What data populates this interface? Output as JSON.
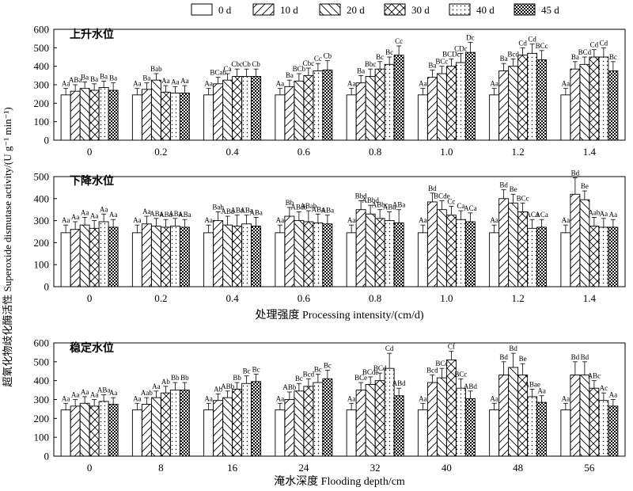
{
  "legend": [
    "0 d",
    "10 d",
    "20 d",
    "30 d",
    "40 d",
    "45 d"
  ],
  "y_axis_title": "超氧化物歧化酶活性 Superoxide dismutase activity/(U g⁻¹ min⁻¹)",
  "chart_data": [
    {
      "type": "bar",
      "title": "上升水位",
      "xlabel": "",
      "ylim": [
        0,
        600
      ],
      "yticks": [
        0,
        100,
        200,
        300,
        400,
        500,
        600
      ],
      "categories": [
        "0",
        "0.2",
        "0.4",
        "0.6",
        "0.8",
        "1.0",
        "1.2",
        "1.4"
      ],
      "series": [
        {
          "values": [
            245,
            245,
            245,
            245,
            245,
            245,
            245,
            245
          ],
          "errors": [
            35,
            35,
            35,
            35,
            35,
            35,
            35,
            35
          ],
          "labels": [
            "Aa",
            "Aa",
            "Aa",
            "Aa",
            "Aa",
            "Aa",
            "Aa",
            "Aa"
          ]
        },
        {
          "values": [
            265,
            275,
            305,
            290,
            310,
            340,
            375,
            385
          ],
          "errors": [
            35,
            35,
            35,
            35,
            40,
            40,
            40,
            40
          ],
          "labels": [
            "ABa",
            "Ba",
            "BCab",
            "Ba",
            "Ba",
            "Ba",
            "Ba",
            "Ba"
          ]
        },
        {
          "values": [
            280,
            325,
            325,
            320,
            345,
            360,
            400,
            410
          ],
          "errors": [
            35,
            35,
            35,
            40,
            40,
            40,
            40,
            40
          ],
          "labels": [
            "Ba",
            "Bab",
            "Ca",
            "BCb",
            "Bbc",
            "BCc",
            "Bcd",
            "BCd"
          ]
        },
        {
          "values": [
            270,
            260,
            345,
            350,
            385,
            400,
            460,
            450
          ],
          "errors": [
            35,
            35,
            40,
            40,
            40,
            40,
            40,
            40
          ],
          "labels": [
            "Ba",
            "Aa",
            "Cbc",
            "Cbc",
            "Bc",
            "BCDc",
            "Cd",
            "Cd"
          ]
        },
        {
          "values": [
            285,
            255,
            345,
            375,
            410,
            420,
            470,
            450
          ],
          "errors": [
            35,
            35,
            40,
            40,
            40,
            50,
            50,
            50
          ],
          "labels": [
            "Ba",
            "Aa",
            "Cb",
            "Cc",
            "Bc",
            "CDc",
            "Cd",
            "Cd"
          ]
        },
        {
          "values": [
            270,
            255,
            345,
            380,
            460,
            475,
            435,
            375
          ],
          "errors": [
            40,
            40,
            40,
            50,
            50,
            55,
            50,
            50
          ],
          "labels": [
            "Ba",
            "Aa",
            "Cb",
            "Cb",
            "Cc",
            "Dc",
            "BCc",
            "Bc"
          ]
        }
      ]
    },
    {
      "type": "bar",
      "title": "下降水位",
      "xlabel": "处理强度 Processing intensity/(cm/d)",
      "ylim": [
        0,
        500
      ],
      "yticks": [
        0,
        100,
        200,
        300,
        400,
        500
      ],
      "categories": [
        "0",
        "0.2",
        "0.4",
        "0.6",
        "0.8",
        "1.0",
        "1.2",
        "1.4"
      ],
      "series": [
        {
          "values": [
            245,
            245,
            245,
            245,
            245,
            245,
            245,
            245
          ],
          "errors": [
            35,
            35,
            35,
            35,
            35,
            35,
            35,
            35
          ],
          "labels": [
            "Aa",
            "Aa",
            "Aa",
            "Aa",
            "Aa",
            "Aa",
            "Aa",
            "Aa"
          ]
        },
        {
          "values": [
            260,
            285,
            300,
            320,
            350,
            385,
            400,
            420
          ],
          "errors": [
            35,
            35,
            40,
            40,
            40,
            40,
            40,
            75
          ],
          "labels": [
            "Aa",
            "Aa",
            "Bab",
            "Bb",
            "Bbd",
            "Bd",
            "Bd",
            "Bd"
          ]
        },
        {
          "values": [
            280,
            275,
            280,
            300,
            330,
            350,
            380,
            395
          ],
          "errors": [
            35,
            35,
            40,
            40,
            40,
            40,
            40,
            40
          ],
          "labels": [
            "Aa",
            "ABa",
            "ABa",
            "ABab",
            "ABbd",
            "BCde",
            "Be",
            "Be"
          ]
        },
        {
          "values": [
            265,
            270,
            275,
            295,
            310,
            325,
            340,
            275
          ],
          "errors": [
            35,
            35,
            50,
            50,
            40,
            40,
            40,
            40
          ],
          "labels": [
            "Aa",
            "ABa",
            "ABa",
            "ABab",
            "ABbc",
            "Cc",
            "BCc",
            "Aab"
          ]
        },
        {
          "values": [
            295,
            275,
            285,
            290,
            300,
            305,
            265,
            270
          ],
          "errors": [
            35,
            35,
            40,
            40,
            40,
            40,
            40,
            40
          ],
          "labels": [
            "Aa",
            "ABa",
            "ABa",
            "ABa",
            "ABa",
            "Ca",
            "ACa",
            "Aa"
          ]
        },
        {
          "values": [
            270,
            270,
            275,
            285,
            290,
            295,
            270,
            270
          ],
          "errors": [
            35,
            35,
            40,
            40,
            60,
            40,
            35,
            35
          ],
          "labels": [
            "Aa",
            "ABa",
            "ABa",
            "ABa",
            "ABa",
            "ACa",
            "ACa",
            "Aa"
          ]
        }
      ]
    },
    {
      "type": "bar",
      "title": "稳定水位",
      "xlabel": "淹水深度 Flooding depth/cm",
      "ylim": [
        0,
        600
      ],
      "yticks": [
        0,
        100,
        200,
        300,
        400,
        500,
        600
      ],
      "categories": [
        "0",
        "8",
        "16",
        "24",
        "32",
        "40",
        "48",
        "56"
      ],
      "series": [
        {
          "values": [
            245,
            245,
            245,
            245,
            245,
            245,
            245,
            245
          ],
          "errors": [
            35,
            35,
            35,
            35,
            35,
            35,
            35,
            35
          ],
          "labels": [
            "Aa",
            "Aa",
            "Aa",
            "Aa",
            "Aa",
            "Aa",
            "Aa",
            "Aa"
          ]
        },
        {
          "values": [
            265,
            275,
            295,
            300,
            350,
            390,
            430,
            430
          ],
          "errors": [
            35,
            35,
            35,
            40,
            40,
            40,
            70,
            70
          ],
          "labels": [
            "Aa",
            "Aab",
            "Ab",
            "ABb",
            "BCe",
            "Bcd",
            "Bd",
            "Bd"
          ]
        },
        {
          "values": [
            280,
            310,
            310,
            345,
            380,
            415,
            470,
            430
          ],
          "errors": [
            35,
            35,
            35,
            40,
            40,
            50,
            75,
            70
          ],
          "labels": [
            "Aa",
            "Aa",
            "ABb",
            "Bc",
            "BCde",
            "BCc",
            "Bd",
            "Bd"
          ]
        },
        {
          "values": [
            265,
            335,
            355,
            370,
            400,
            510,
            430,
            360
          ],
          "errors": [
            35,
            35,
            35,
            40,
            40,
            45,
            60,
            40
          ],
          "labels": [
            "Aa",
            "Ab",
            "Bb",
            "Bcd",
            "BCd",
            "Cf",
            "Be",
            "ABc"
          ]
        },
        {
          "values": [
            290,
            350,
            385,
            390,
            465,
            360,
            315,
            295
          ],
          "errors": [
            35,
            40,
            40,
            45,
            80,
            50,
            40,
            40
          ],
          "labels": [
            "ABa",
            "Bb",
            "Bc",
            "Bc",
            "Cd",
            "BCc",
            "ABae",
            "Ac"
          ]
        },
        {
          "values": [
            275,
            350,
            395,
            410,
            320,
            305,
            285,
            265
          ],
          "errors": [
            35,
            40,
            40,
            45,
            40,
            40,
            35,
            35
          ],
          "labels": [
            "Aa",
            "Bb",
            "Bc",
            "Bc",
            "ABd",
            "ABd",
            "Aa",
            "Aa"
          ]
        }
      ]
    }
  ]
}
